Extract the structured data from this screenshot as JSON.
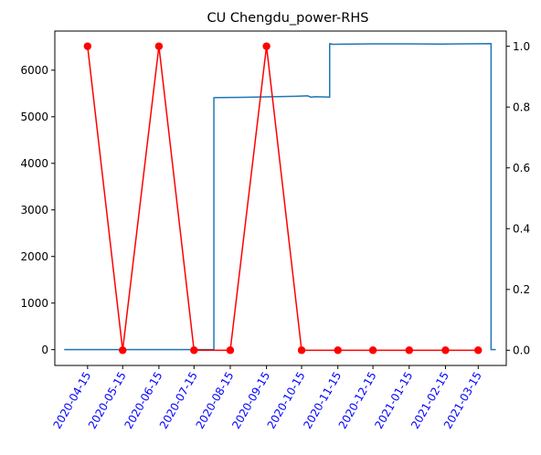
{
  "chart_data": {
    "type": "line",
    "title": "CU Chengdu_power-RHS",
    "xlabel": "",
    "ylabel_left": "",
    "ylabel_right": "",
    "grid": false,
    "x_range": [
      "2020-03-18",
      "2021-04-08"
    ],
    "y_left_range": [
      -340,
      6840
    ],
    "y_right_range": [
      -0.05,
      1.05
    ],
    "x_ticks": [
      "2020-04-15",
      "2020-05-15",
      "2020-06-15",
      "2020-07-15",
      "2020-08-15",
      "2020-09-15",
      "2020-10-15",
      "2020-11-15",
      "2020-12-15",
      "2021-01-15",
      "2021-02-15",
      "2021-03-15"
    ],
    "x_tick_color": "#0000ff",
    "y_left_ticks": [
      0,
      1000,
      2000,
      3000,
      4000,
      5000,
      6000
    ],
    "y_right_ticks": [
      "0.0",
      "0.2",
      "0.4",
      "0.6",
      "0.8",
      "1.0"
    ],
    "series": [
      {
        "axis": "left",
        "color": "#1f77b4",
        "marker": "none",
        "points": [
          [
            "2020-03-26",
            0
          ],
          [
            "2020-08-01",
            0
          ],
          [
            "2020-08-01",
            5410
          ],
          [
            "2020-08-20",
            5415
          ],
          [
            "2020-09-01",
            5420
          ],
          [
            "2020-09-20",
            5430
          ],
          [
            "2020-10-10",
            5440
          ],
          [
            "2020-10-20",
            5450
          ],
          [
            "2020-10-23",
            5420
          ],
          [
            "2020-10-26",
            5430
          ],
          [
            "2020-11-05",
            5425
          ],
          [
            "2020-11-08",
            5420
          ],
          [
            "2020-11-08",
            6570
          ],
          [
            "2020-11-10",
            6555
          ],
          [
            "2020-11-25",
            6560
          ],
          [
            "2020-12-15",
            6565
          ],
          [
            "2021-01-15",
            6565
          ],
          [
            "2021-02-10",
            6560
          ],
          [
            "2021-03-01",
            6565
          ],
          [
            "2021-03-26",
            6570
          ],
          [
            "2021-03-26",
            0
          ],
          [
            "2021-03-30",
            0
          ]
        ]
      },
      {
        "axis": "right",
        "color": "#ff0000",
        "marker": "circle",
        "points": [
          [
            "2020-04-15",
            1
          ],
          [
            "2020-05-15",
            0
          ],
          [
            "2020-06-15",
            1
          ],
          [
            "2020-07-15",
            0
          ],
          [
            "2020-08-15",
            0
          ],
          [
            "2020-09-15",
            1
          ],
          [
            "2020-10-15",
            0
          ],
          [
            "2020-11-15",
            0
          ],
          [
            "2020-12-15",
            0
          ],
          [
            "2021-01-15",
            0
          ],
          [
            "2021-02-15",
            0
          ],
          [
            "2021-03-15",
            0
          ]
        ]
      }
    ]
  }
}
